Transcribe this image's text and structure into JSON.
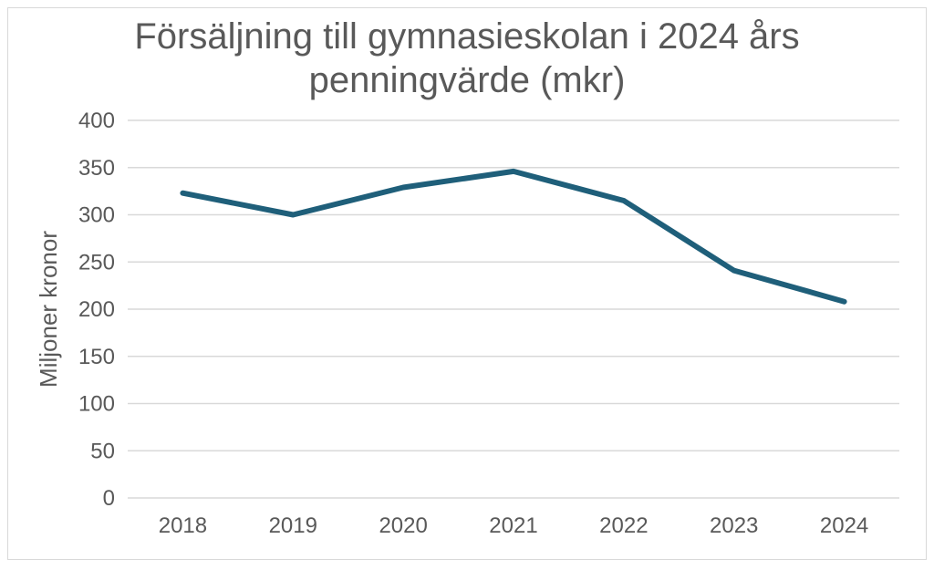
{
  "chart_data": {
    "type": "line",
    "title_lines": [
      "Försäljning till gymnasieskolan i 2024 års",
      "penningvärde (mkr)"
    ],
    "xlabel": "",
    "ylabel": "Miljoner kronor",
    "categories": [
      "2018",
      "2019",
      "2020",
      "2021",
      "2022",
      "2023",
      "2024"
    ],
    "series": [
      {
        "values": [
          323,
          300,
          329,
          346,
          315,
          241,
          208
        ]
      }
    ],
    "ylim": [
      0,
      400
    ],
    "yticks": [
      "0",
      "50",
      "100",
      "150",
      "200",
      "250",
      "300",
      "350",
      "400"
    ],
    "grid": true,
    "line_color": "#1f5f7a",
    "grid_color": "#d9d9d9"
  }
}
